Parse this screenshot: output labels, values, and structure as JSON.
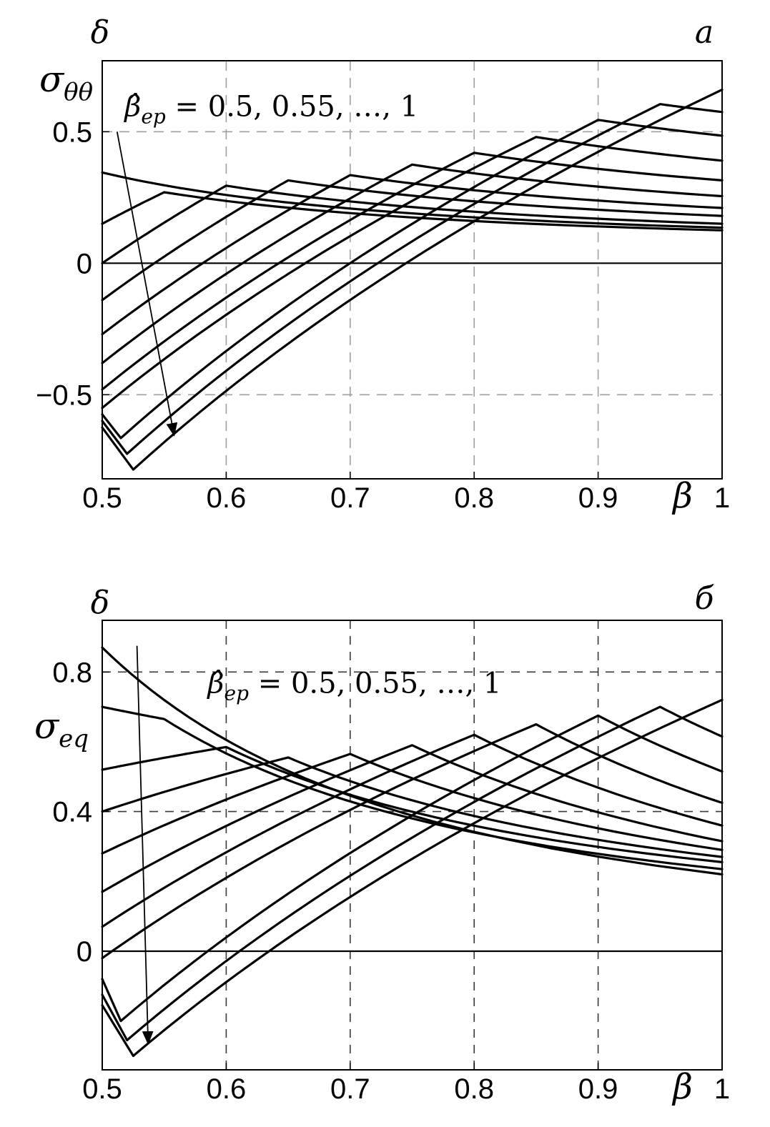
{
  "figure": {
    "background": "#ffffff",
    "curve_color": "#000000"
  },
  "chart_data": [
    {
      "id": "top",
      "type": "line",
      "corner_label": "a",
      "axis": {
        "x_label": "β",
        "y_label": "σ",
        "y_label_sub": "θθ",
        "y_axis_top_label": "δ"
      },
      "xlim": [
        0.5,
        1
      ],
      "ylim": [
        -0.82,
        0.77
      ],
      "xticks": {
        "values": [
          0.5,
          0.6,
          0.7,
          0.8,
          0.9,
          1
        ],
        "labels": [
          "0.5",
          "0.6",
          "0.7",
          "0.8",
          "0.9",
          "1"
        ]
      },
      "yticks": {
        "values": [
          0.5,
          0,
          -0.5
        ],
        "labels": [
          "0.5",
          "0",
          "−0.5"
        ]
      },
      "grid": {
        "x_dashed": [
          0.6,
          0.7,
          0.8,
          0.9
        ],
        "y_dashed": [
          0.5,
          -0.5
        ],
        "y_solid": [
          0
        ],
        "color": "#a0a0a0",
        "dash": "14 10"
      },
      "annotation": {
        "symbol": "β̂",
        "sub": "ep",
        "rest": " = 0.5, 0.55, …, 1",
        "pos": [
          0.518,
          0.56
        ],
        "arrow_from": [
          0.512,
          0.5
        ],
        "arrow_to": [
          0.558,
          -0.655
        ]
      },
      "series": [
        {
          "beta_hat": 0.5,
          "start": [
            0.5,
            0.345
          ],
          "peak": [
            0.5,
            0.345
          ],
          "end": [
            1,
            0.135
          ]
        },
        {
          "beta_hat": 0.55,
          "start": [
            0.5,
            0.15
          ],
          "peak": [
            0.55,
            0.27
          ],
          "end": [
            1,
            0.125
          ]
        },
        {
          "beta_hat": 0.6,
          "start": [
            0.5,
            0.0
          ],
          "peak": [
            0.6,
            0.295
          ],
          "end": [
            1,
            0.15
          ]
        },
        {
          "beta_hat": 0.65,
          "start": [
            0.5,
            -0.14
          ],
          "peak": [
            0.65,
            0.315
          ],
          "end": [
            1,
            0.18
          ]
        },
        {
          "beta_hat": 0.7,
          "start": [
            0.5,
            -0.27
          ],
          "peak": [
            0.7,
            0.335
          ],
          "end": [
            1,
            0.21
          ]
        },
        {
          "beta_hat": 0.75,
          "start": [
            0.5,
            -0.38
          ],
          "peak": [
            0.75,
            0.375
          ],
          "end": [
            1,
            0.255
          ]
        },
        {
          "beta_hat": 0.8,
          "start": [
            0.5,
            -0.48
          ],
          "peak": [
            0.8,
            0.42
          ],
          "end": [
            1,
            0.315
          ]
        },
        {
          "beta_hat": 0.85,
          "start": [
            0.5,
            -0.55
          ],
          "peak": [
            0.85,
            0.48
          ],
          "end": [
            1,
            0.39
          ]
        },
        {
          "beta_hat": 0.9,
          "start": [
            0.5,
            -0.575
          ],
          "dip": [
            0.515,
            -0.665
          ],
          "peak": [
            0.9,
            0.545
          ],
          "end": [
            1,
            0.485
          ]
        },
        {
          "beta_hat": 0.95,
          "start": [
            0.5,
            -0.6
          ],
          "dip": [
            0.52,
            -0.725
          ],
          "peak": [
            0.95,
            0.605
          ],
          "end": [
            1,
            0.575
          ]
        },
        {
          "beta_hat": 1.0,
          "start": [
            0.5,
            -0.625
          ],
          "dip": [
            0.525,
            -0.785
          ],
          "peak": [
            1,
            0.66
          ],
          "end": [
            1,
            0.66
          ]
        }
      ]
    },
    {
      "id": "bottom",
      "type": "line",
      "corner_label": "б",
      "axis": {
        "x_label": "β",
        "y_label": "σ",
        "y_label_sub": "eq",
        "y_axis_top_label": "δ"
      },
      "xlim": [
        0.5,
        1
      ],
      "ylim": [
        -0.34,
        0.948
      ],
      "xticks": {
        "values": [
          0.5,
          0.6,
          0.7,
          0.8,
          0.9,
          1
        ],
        "labels": [
          "0.5",
          "0.6",
          "0.7",
          "0.8",
          "0.9",
          "1"
        ]
      },
      "yticks": {
        "values": [
          0.8,
          0.4,
          0
        ],
        "labels": [
          "0.8",
          "0.4",
          "0"
        ]
      },
      "grid": {
        "x_dashed": [
          0.6,
          0.7,
          0.8,
          0.9
        ],
        "y_dashed": [
          0.8,
          0.4
        ],
        "y_solid": [
          0
        ],
        "color": "#3a3a3a",
        "dash": "12 10"
      },
      "annotation": {
        "symbol": "β̂",
        "sub": "ep",
        "rest": " = 0.5, 0.55, …, 1",
        "pos": [
          0.585,
          0.74
        ],
        "arrow_from": [
          0.528,
          0.875
        ],
        "arrow_to": [
          0.537,
          -0.265
        ]
      },
      "series": [
        {
          "beta_hat": 0.5,
          "start": [
            0.5,
            0.87
          ],
          "peak": [
            0.5,
            0.87
          ],
          "end": [
            1,
            0.22
          ]
        },
        {
          "beta_hat": 0.55,
          "start": [
            0.5,
            0.7
          ],
          "peak": [
            0.55,
            0.665
          ],
          "end": [
            1,
            0.235
          ]
        },
        {
          "beta_hat": 0.6,
          "start": [
            0.5,
            0.52
          ],
          "peak": [
            0.6,
            0.585
          ],
          "end": [
            1,
            0.255
          ]
        },
        {
          "beta_hat": 0.65,
          "start": [
            0.5,
            0.4
          ],
          "peak": [
            0.65,
            0.555
          ],
          "end": [
            1,
            0.27
          ]
        },
        {
          "beta_hat": 0.7,
          "start": [
            0.5,
            0.28
          ],
          "peak": [
            0.7,
            0.565
          ],
          "end": [
            1,
            0.29
          ]
        },
        {
          "beta_hat": 0.75,
          "start": [
            0.5,
            0.17
          ],
          "peak": [
            0.75,
            0.59
          ],
          "end": [
            1,
            0.315
          ]
        },
        {
          "beta_hat": 0.8,
          "start": [
            0.5,
            0.07
          ],
          "peak": [
            0.8,
            0.62
          ],
          "end": [
            1,
            0.36
          ]
        },
        {
          "beta_hat": 0.85,
          "start": [
            0.5,
            -0.02
          ],
          "peak": [
            0.85,
            0.65
          ],
          "end": [
            1,
            0.425
          ]
        },
        {
          "beta_hat": 0.9,
          "start": [
            0.5,
            -0.08
          ],
          "dip": [
            0.515,
            -0.2
          ],
          "peak": [
            0.9,
            0.675
          ],
          "end": [
            1,
            0.515
          ]
        },
        {
          "beta_hat": 0.95,
          "start": [
            0.5,
            -0.125
          ],
          "dip": [
            0.52,
            -0.255
          ],
          "peak": [
            0.95,
            0.7
          ],
          "end": [
            1,
            0.615
          ]
        },
        {
          "beta_hat": 1.0,
          "start": [
            0.5,
            -0.155
          ],
          "dip": [
            0.525,
            -0.3
          ],
          "peak": [
            1,
            0.72
          ],
          "end": [
            1,
            0.72
          ]
        }
      ]
    }
  ]
}
